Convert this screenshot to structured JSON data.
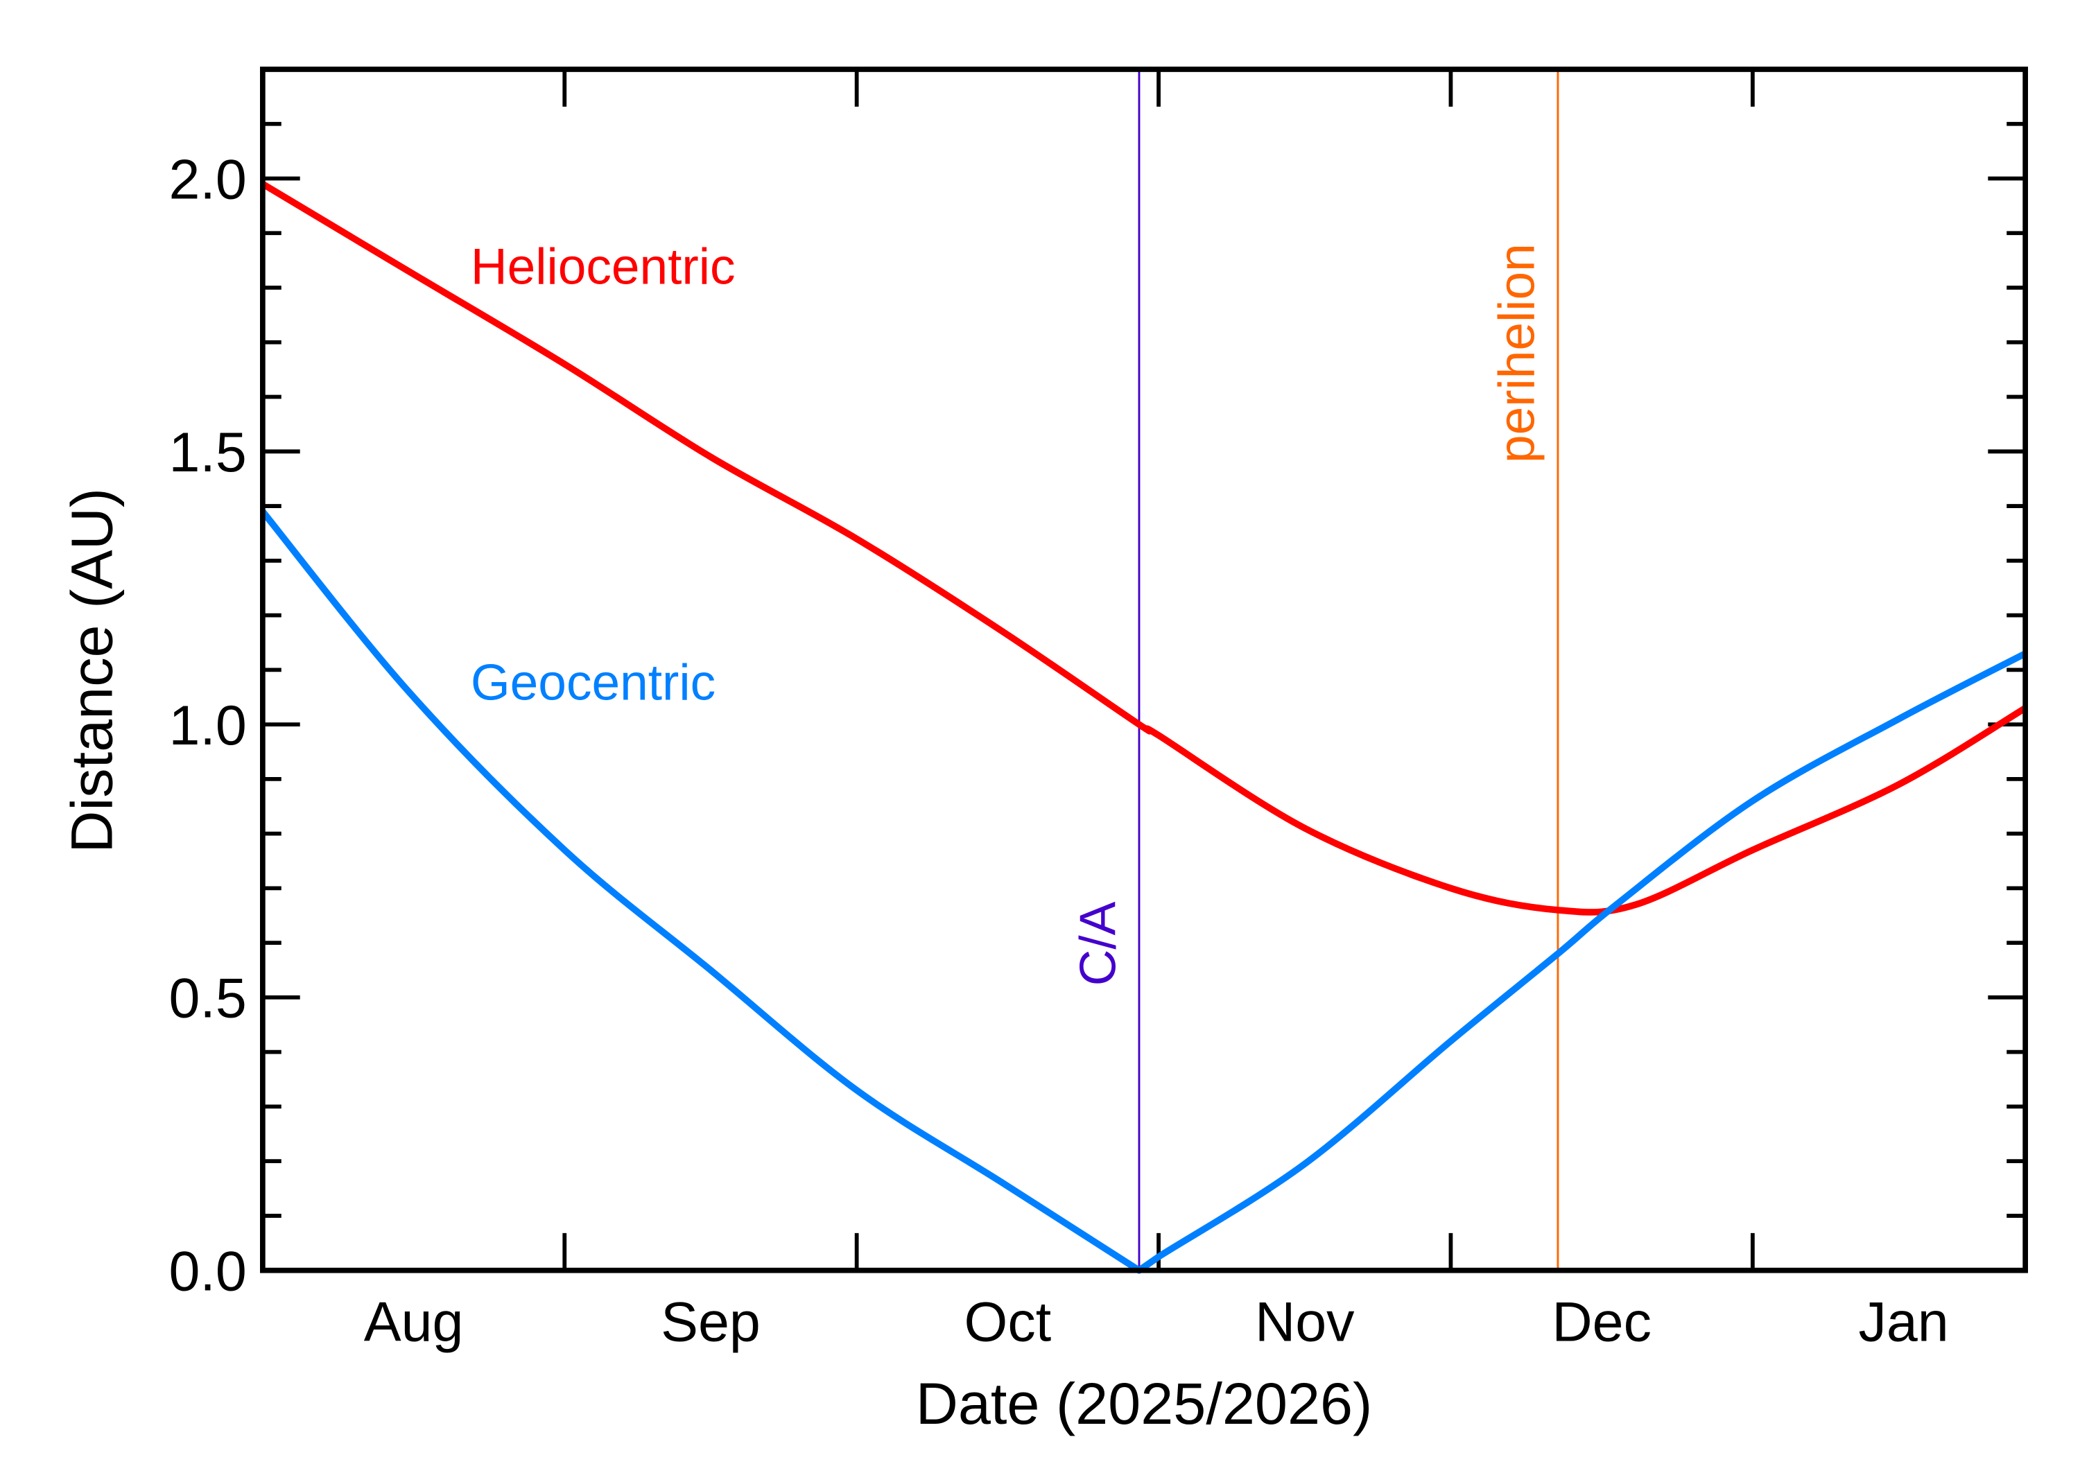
{
  "chart_data": {
    "type": "line",
    "xlabel": "Date (2025/2026)",
    "ylabel": "Distance (AU)",
    "xlim": [
      "2025-08-01",
      "2026-01-29"
    ],
    "ylim": [
      0,
      2.2
    ],
    "grid": false,
    "x_tick_labels": [
      {
        "label": "Aug",
        "month_start": "2025-08-01"
      },
      {
        "label": "Sep",
        "month_start": "2025-09-01"
      },
      {
        "label": "Oct",
        "month_start": "2025-10-01"
      },
      {
        "label": "Nov",
        "month_start": "2025-11-01"
      },
      {
        "label": "Dec",
        "month_start": "2025-12-01"
      },
      {
        "label": "Jan",
        "month_start": "2026-01-01"
      }
    ],
    "y_ticks": [
      0.0,
      0.5,
      1.0,
      1.5,
      2.0
    ],
    "y_tick_labels": [
      "0.0",
      "0.5",
      "1.0",
      "1.5",
      "2.0"
    ],
    "y_minor_step": 0.1,
    "series": [
      {
        "name": "Heliocentric",
        "color": "#ff0000",
        "x": [
          "2025-08-01",
          "2025-08-16",
          "2025-09-01",
          "2025-09-16",
          "2025-10-01",
          "2025-10-16",
          "2025-10-30",
          "2025-11-01",
          "2025-11-16",
          "2025-12-01",
          "2025-12-12",
          "2025-12-20",
          "2026-01-01",
          "2026-01-16",
          "2026-01-29"
        ],
        "y": [
          1.99,
          1.83,
          1.66,
          1.49,
          1.34,
          1.17,
          1.0,
          0.98,
          0.81,
          0.7,
          0.66,
          0.67,
          0.77,
          0.89,
          1.03
        ]
      },
      {
        "name": "Geocentric",
        "color": "#0080ff",
        "x": [
          "2025-08-01",
          "2025-08-16",
          "2025-09-01",
          "2025-09-16",
          "2025-10-01",
          "2025-10-16",
          "2025-10-30",
          "2025-11-01",
          "2025-11-16",
          "2025-12-01",
          "2025-12-12",
          "2025-12-18",
          "2026-01-01",
          "2026-01-16",
          "2026-01-29"
        ],
        "y": [
          1.39,
          1.06,
          0.77,
          0.55,
          0.33,
          0.16,
          0.0,
          0.025,
          0.195,
          0.42,
          0.58,
          0.67,
          0.86,
          1.01,
          1.13
        ]
      }
    ],
    "annotations": [
      {
        "label": "C/A",
        "date": "2025-10-30",
        "color": "#4400cc"
      },
      {
        "label": "perihelion",
        "date": "2025-12-12",
        "color": "#ff6600"
      }
    ]
  }
}
